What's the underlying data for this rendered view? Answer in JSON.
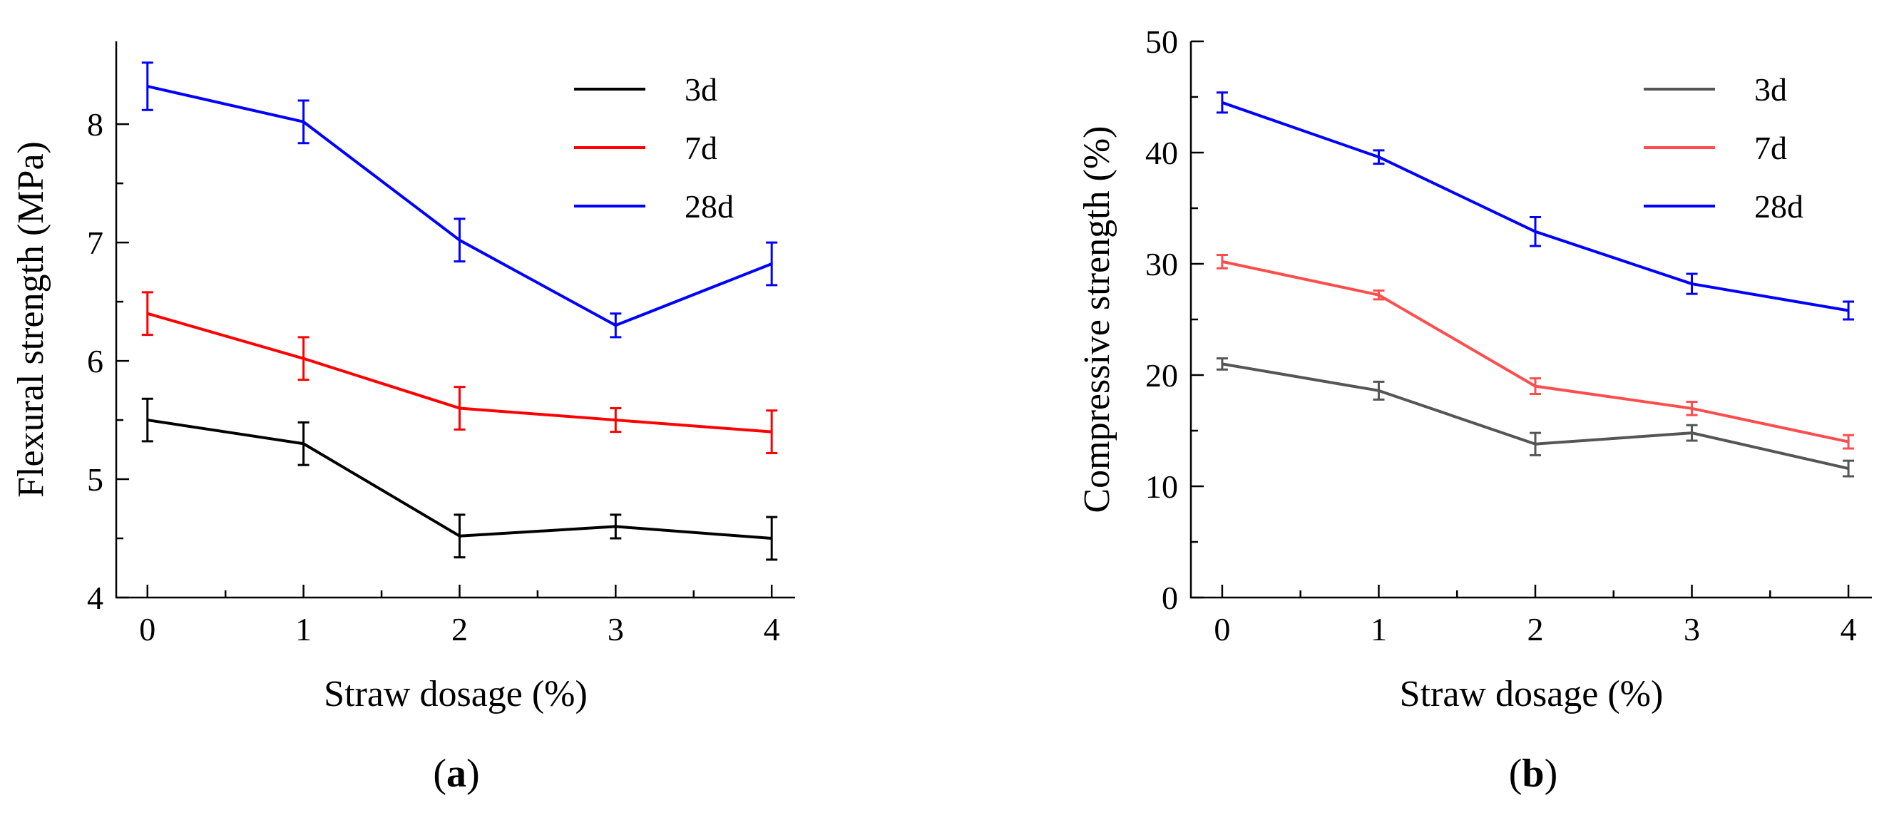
{
  "chart_data": [
    {
      "type": "line",
      "panel_label": "a",
      "title": "",
      "xlabel": "Straw dosage (%)",
      "ylabel": "Flexural strength (MPa)",
      "x": [
        0,
        1,
        2,
        3,
        4
      ],
      "xticks": [
        "0",
        "1",
        "2",
        "3",
        "4"
      ],
      "xlim": [
        -0.2,
        4.15
      ],
      "ylim": [
        4,
        8.7
      ],
      "yticks": [
        "4",
        "5",
        "6",
        "7",
        "8"
      ],
      "ytick_values": [
        4,
        5,
        6,
        7,
        8
      ],
      "legend_position": "top-right",
      "series": [
        {
          "name": "3d",
          "color": "#000000",
          "values": [
            5.5,
            5.3,
            4.52,
            4.6,
            4.5
          ],
          "errors": [
            0.18,
            0.18,
            0.18,
            0.1,
            0.18
          ]
        },
        {
          "name": "7d",
          "color": "#ff0000",
          "values": [
            6.4,
            6.02,
            5.6,
            5.5,
            5.4
          ],
          "errors": [
            0.18,
            0.18,
            0.18,
            0.1,
            0.18
          ]
        },
        {
          "name": "28d",
          "color": "#0000ff",
          "values": [
            8.32,
            8.02,
            7.02,
            6.3,
            6.82
          ],
          "errors": [
            0.2,
            0.18,
            0.18,
            0.1,
            0.18
          ]
        }
      ]
    },
    {
      "type": "line",
      "panel_label": "b",
      "title": "",
      "xlabel": "Straw dosage (%)",
      "ylabel": "Compressive strength (%)",
      "x": [
        0,
        1,
        2,
        3,
        4
      ],
      "xticks": [
        "0",
        "1",
        "2",
        "3",
        "4"
      ],
      "xlim": [
        -0.2,
        4.15
      ],
      "ylim": [
        0,
        50
      ],
      "yticks": [
        "0",
        "10",
        "20",
        "30",
        "40",
        "50"
      ],
      "ytick_values": [
        0,
        10,
        20,
        30,
        40,
        50
      ],
      "legend_position": "top-right",
      "series": [
        {
          "name": "3d",
          "color": "#555555",
          "values": [
            21,
            18.6,
            13.8,
            14.8,
            11.6
          ],
          "errors": [
            0.5,
            0.8,
            1.0,
            0.7,
            0.7
          ]
        },
        {
          "name": "7d",
          "color": "#ff4d4d",
          "values": [
            30.2,
            27.2,
            19.0,
            17.0,
            14.0
          ],
          "errors": [
            0.6,
            0.4,
            0.7,
            0.6,
            0.6
          ]
        },
        {
          "name": "28d",
          "color": "#0000ff",
          "values": [
            44.5,
            39.6,
            32.9,
            28.2,
            25.8
          ],
          "errors": [
            0.9,
            0.6,
            1.3,
            0.9,
            0.8
          ]
        }
      ]
    }
  ]
}
